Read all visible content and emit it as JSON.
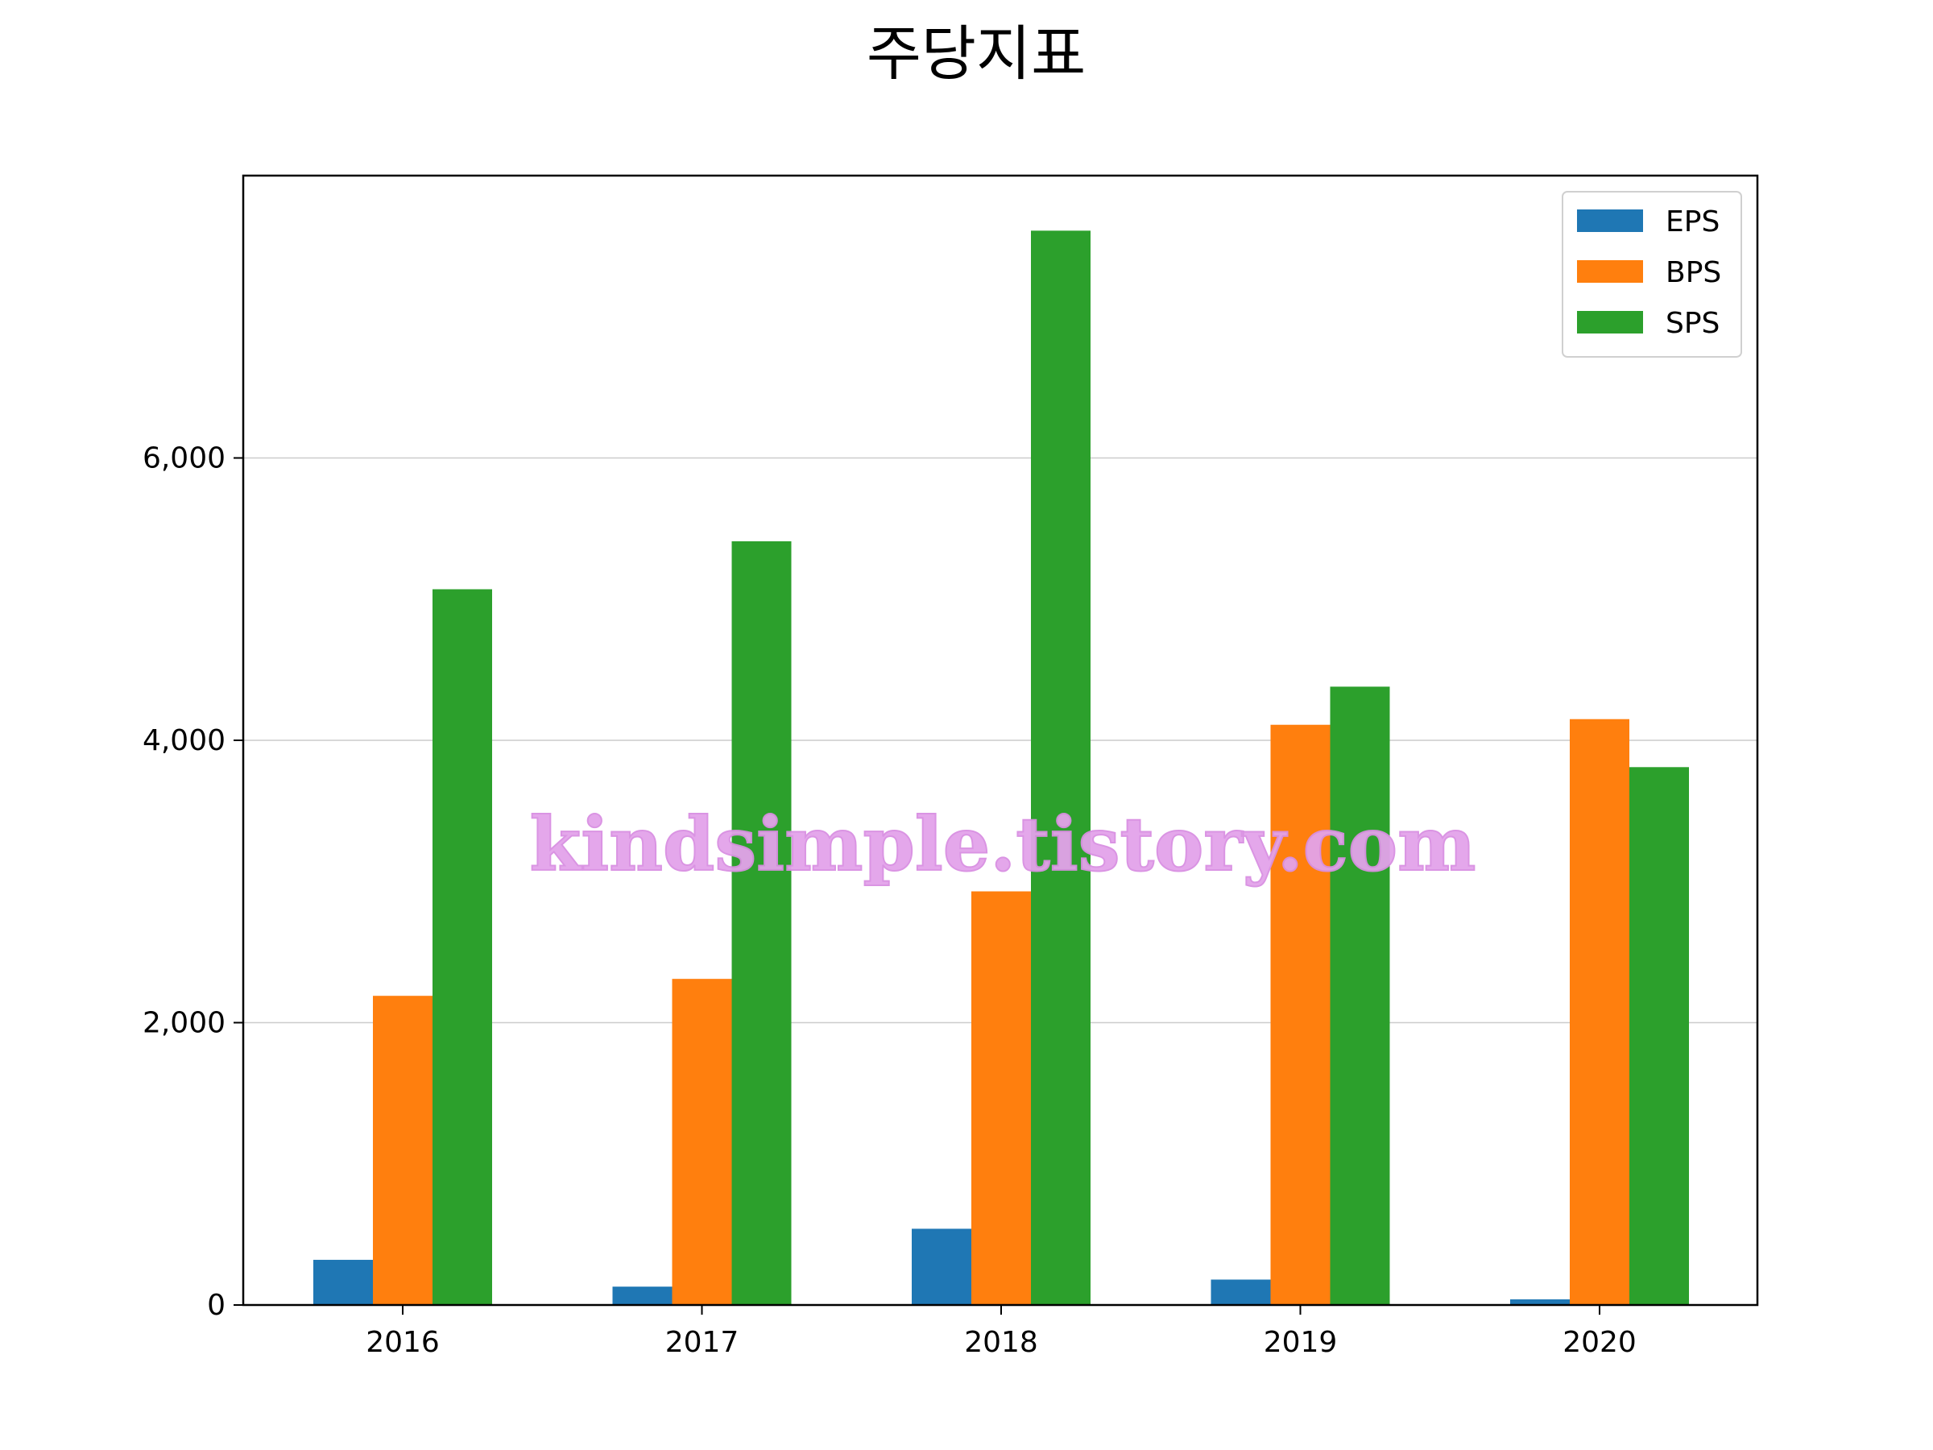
{
  "chart_data": {
    "type": "bar",
    "title": "주당지표",
    "categories": [
      "2016",
      "2017",
      "2018",
      "2019",
      "2020"
    ],
    "series": [
      {
        "name": "EPS",
        "color": "#1f77b4",
        "values": [
          320,
          130,
          540,
          180,
          40
        ]
      },
      {
        "name": "BPS",
        "color": "#ff7f0e",
        "values": [
          2190,
          2310,
          2930,
          4110,
          4150
        ]
      },
      {
        "name": "SPS",
        "color": "#2ca02c",
        "values": [
          5070,
          5410,
          7610,
          4380,
          3810
        ]
      }
    ],
    "ylim": [
      0,
      8000
    ],
    "yticks": [
      0,
      2000,
      4000,
      6000
    ],
    "ytick_labels": [
      "0",
      "2,000",
      "4,000",
      "6,000"
    ],
    "grid": "y",
    "legend_position": "top-right"
  },
  "watermark": "kindsimple.tistory.com"
}
